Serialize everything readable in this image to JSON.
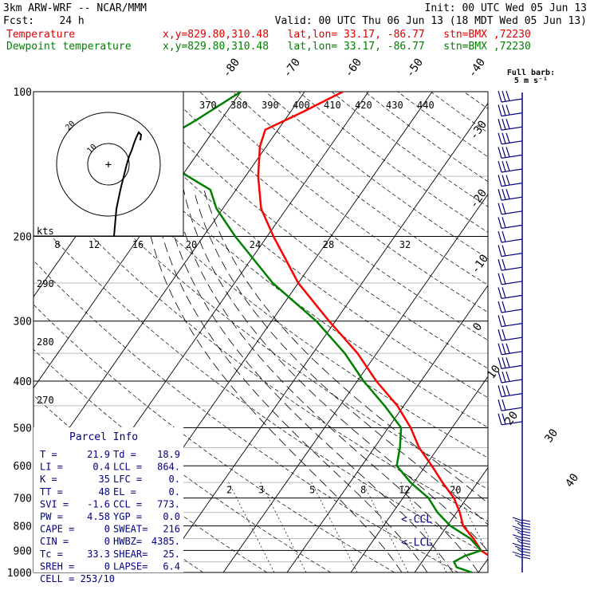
{
  "header": {
    "model": "3km ARW-WRF -- NCAR/MMM",
    "init": "Init: 00 UTC Wed 05 Jun 13",
    "fcst": "Fcst:    24 h",
    "valid": "Valid: 00 UTC Thu 06 Jun 13 (18 MDT Wed 05 Jun 13)",
    "temp_label": "Temperature",
    "temp_loc": "x,y=829.80,310.48   lat,lon= 33.17, -86.77   stn=BMX ,72230",
    "dew_label": "Dewpoint temperature",
    "dew_loc": "x,y=829.80,310.48   lat,lon= 33.17, -86.77   stn=BMX ,72230"
  },
  "colors": {
    "temperature": "#ff0000",
    "dewpoint": "#008000",
    "info": "#000080",
    "barbs": "#000080"
  },
  "chart_data": {
    "type": "skew-t",
    "pressure_ticks": [
      "100",
      "200",
      "300",
      "400",
      "500",
      "600",
      "700",
      "800",
      "900",
      "1000"
    ],
    "isotherm_labels": [
      "-80",
      "-70",
      "-60",
      "-50",
      "-40",
      "-30",
      "-20",
      "-10",
      "0",
      "10",
      "20",
      "30",
      "40"
    ],
    "theta_labels": [
      "370",
      "380",
      "390",
      "400",
      "410",
      "420",
      "430",
      "440"
    ],
    "theta_left_labels": [
      "290",
      "280",
      "270"
    ],
    "mixing_ratio_labels": [
      "2",
      "3",
      "5",
      "8",
      "12",
      "20"
    ],
    "barb_note": [
      "Full barb:",
      "5 m s⁻¹"
    ],
    "hodograph": {
      "units": "kts",
      "ring_labels": [
        "20",
        "10"
      ],
      "axis_labels": [
        "8",
        "12",
        "16",
        "20",
        "24",
        "28",
        "32"
      ]
    },
    "series": [
      {
        "name": "Temperature",
        "points": [
          [
            1000,
            22
          ],
          [
            975,
            23
          ],
          [
            950,
            22
          ],
          [
            925,
            20
          ],
          [
            900,
            18
          ],
          [
            850,
            15.5
          ],
          [
            800,
            12.5
          ],
          [
            750,
            10.5
          ],
          [
            700,
            8
          ],
          [
            650,
            4.5
          ],
          [
            600,
            1
          ],
          [
            550,
            -3
          ],
          [
            500,
            -6.5
          ],
          [
            450,
            -11
          ],
          [
            400,
            -17
          ],
          [
            350,
            -23
          ],
          [
            300,
            -31
          ],
          [
            250,
            -40
          ],
          [
            200,
            -49
          ],
          [
            175,
            -54
          ],
          [
            150,
            -58
          ],
          [
            130,
            -61
          ],
          [
            120,
            -62
          ],
          [
            110,
            -58
          ],
          [
            100,
            -54
          ]
        ]
      },
      {
        "name": "Dewpoint temperature",
        "points": [
          [
            1000,
            19
          ],
          [
            975,
            16
          ],
          [
            950,
            15
          ],
          [
            925,
            16
          ],
          [
            900,
            18
          ],
          [
            850,
            15
          ],
          [
            800,
            10.5
          ],
          [
            750,
            7
          ],
          [
            700,
            4
          ],
          [
            650,
            -0.5
          ],
          [
            600,
            -4.5
          ],
          [
            550,
            -6
          ],
          [
            500,
            -8
          ],
          [
            450,
            -13
          ],
          [
            400,
            -19
          ],
          [
            350,
            -25
          ],
          [
            300,
            -33
          ],
          [
            250,
            -44
          ],
          [
            200,
            -55
          ],
          [
            175,
            -61
          ],
          [
            160,
            -64
          ],
          [
            150,
            -69
          ],
          [
            140,
            -74
          ],
          [
            130,
            -78
          ],
          [
            115,
            -74
          ],
          [
            100,
            -70
          ]
        ]
      }
    ],
    "markers": [
      {
        "label": "<-CCL",
        "pressure": 773
      },
      {
        "label": "<-LCL",
        "pressure": 864
      }
    ]
  },
  "parcel_info": {
    "title": "Parcel Info",
    "rows": [
      [
        "T  =",
        "21.9",
        "Td  =",
        "18.9"
      ],
      [
        "LI =",
        "0.4",
        "LCL =",
        "864."
      ],
      [
        "K  =",
        "35",
        "LFC =",
        "0."
      ],
      [
        "TT =",
        "48",
        "EL  =",
        "0."
      ],
      [
        "SVI =",
        "-1.6",
        "CCL =",
        "773."
      ],
      [
        "PW =",
        "4.58",
        "YGP =",
        "0.0"
      ],
      [
        "CAPE =",
        "0",
        "SWEAT=",
        "216"
      ],
      [
        "CIN =",
        "0",
        "HWBZ=",
        "4385."
      ],
      [
        "Tc =",
        "33.3",
        "SHEAR=",
        "25."
      ],
      [
        "SREH =",
        "0",
        "LAPSE=",
        "6.4"
      ]
    ],
    "cell": "CELL = 253/10"
  }
}
